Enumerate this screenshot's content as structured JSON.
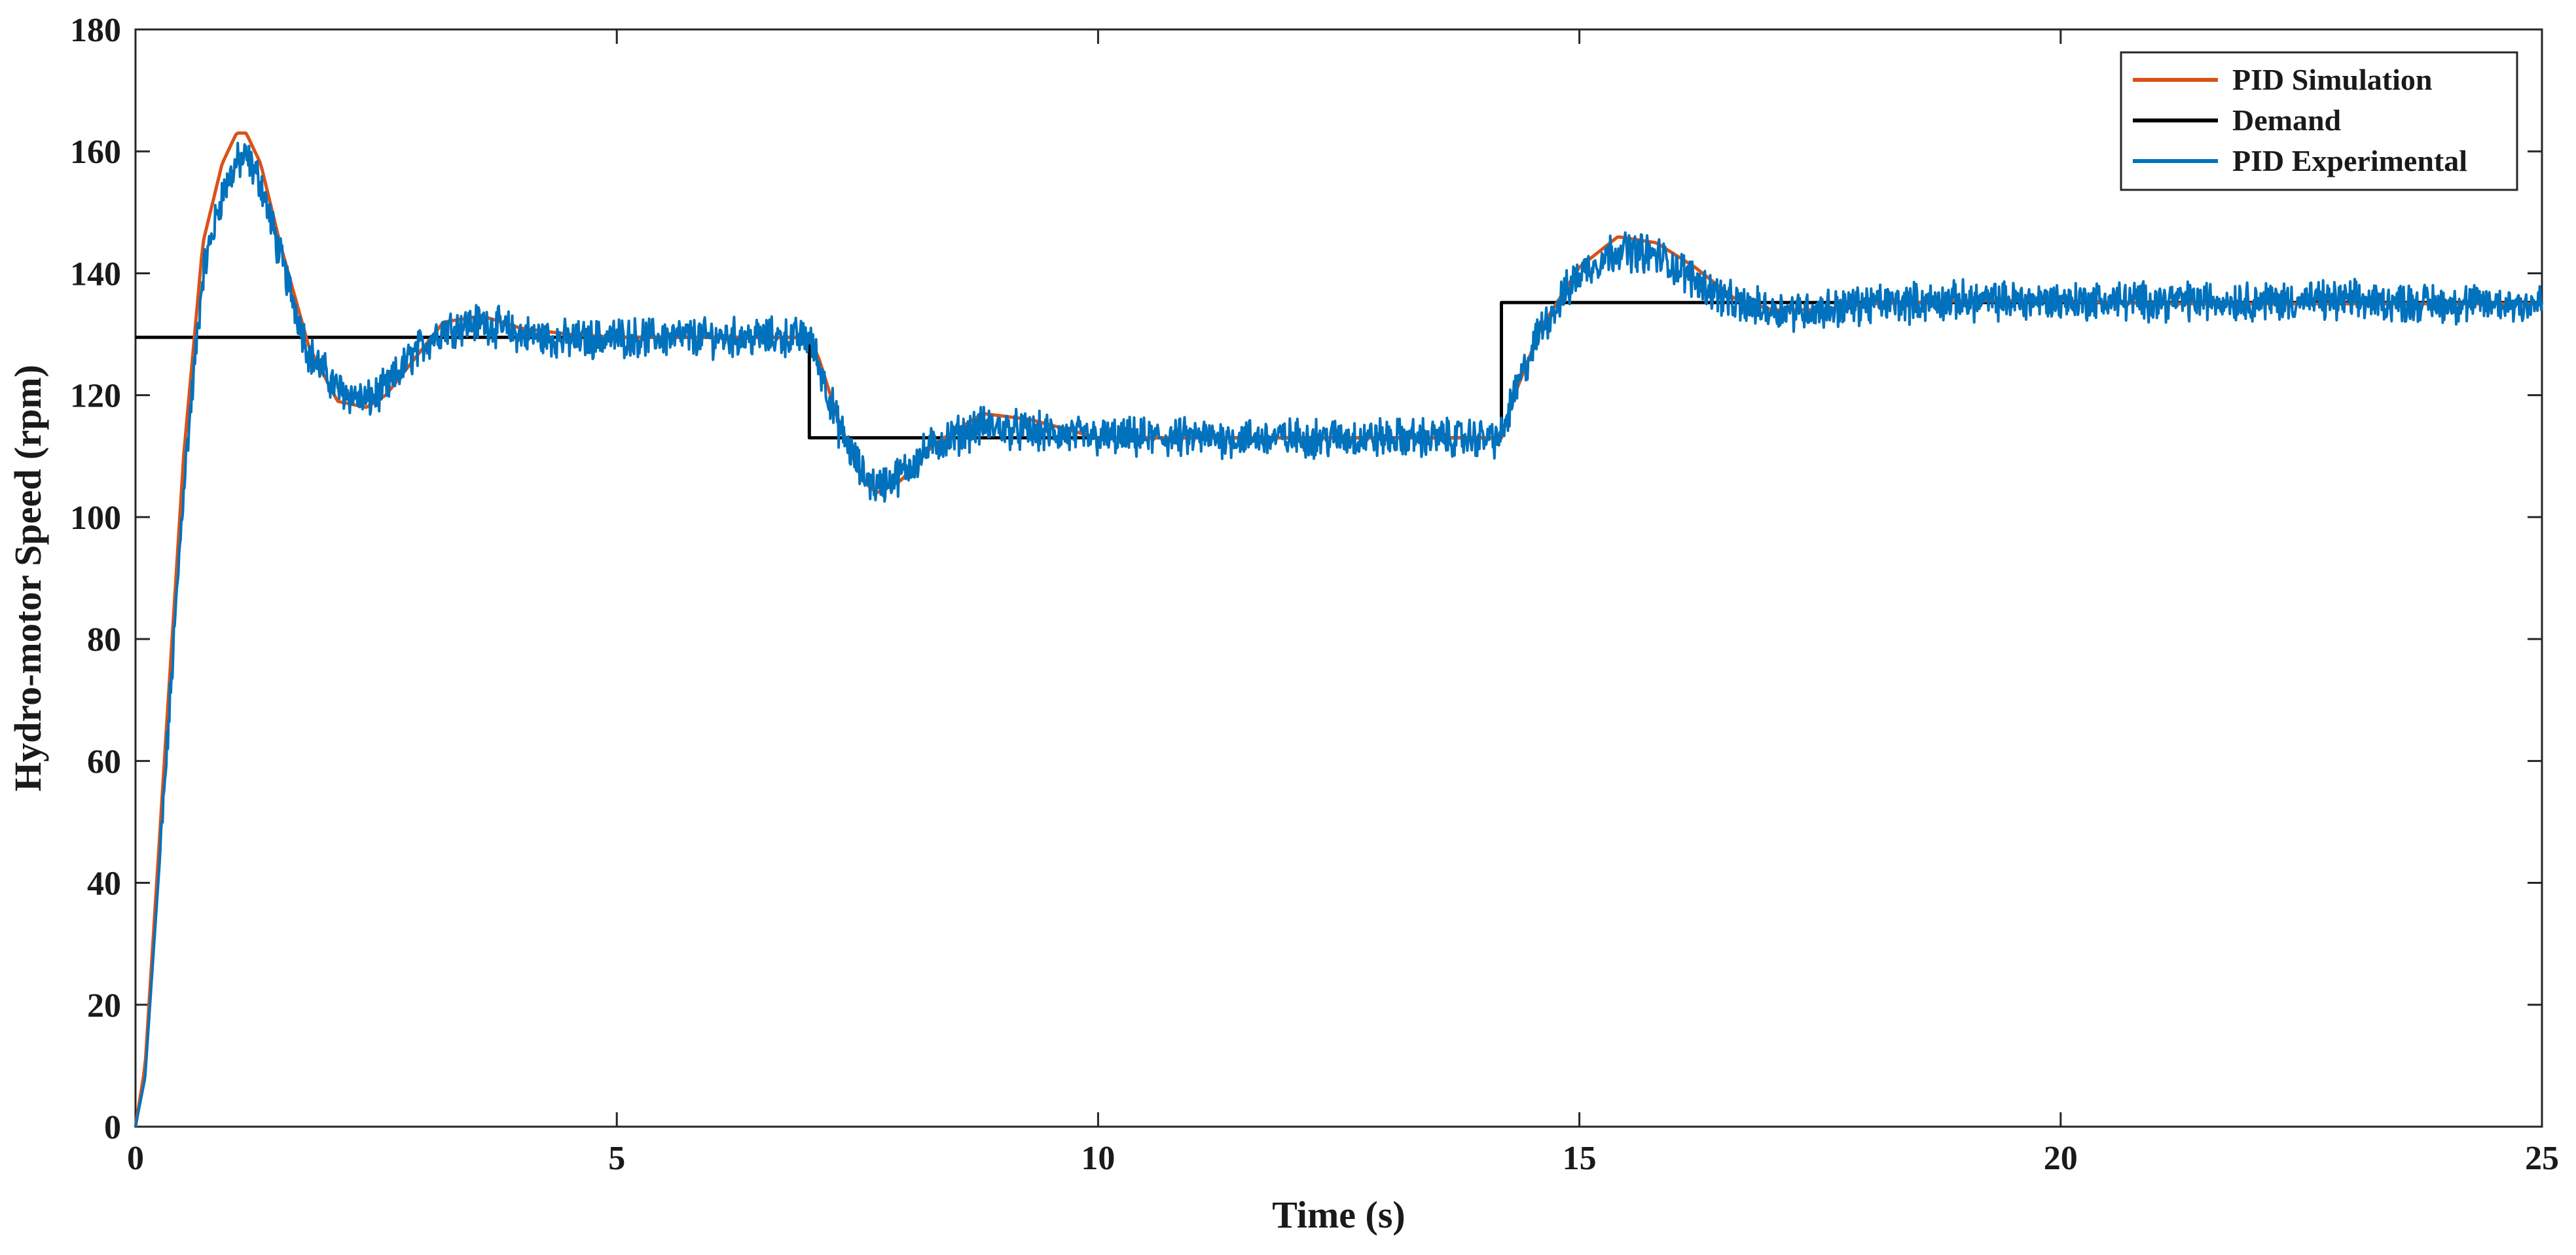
{
  "chart_data": {
    "type": "line",
    "title": "",
    "xlabel": "Time (s)",
    "ylabel": "Hydro-motor Speed (rpm)",
    "xlim": [
      0,
      25
    ],
    "ylim": [
      0,
      180
    ],
    "xticks": [
      0,
      5,
      10,
      15,
      20,
      25
    ],
    "yticks": [
      0,
      20,
      40,
      60,
      80,
      100,
      120,
      140,
      160,
      180
    ],
    "grid": false,
    "legend_position": "top-right",
    "series": [
      {
        "name": "PID Simulation",
        "color": "#d95319",
        "style": "smooth",
        "x": [
          0,
          0.1,
          0.3,
          0.5,
          0.7,
          0.9,
          1.05,
          1.15,
          1.3,
          1.5,
          1.8,
          2.1,
          2.4,
          2.6,
          2.9,
          3.2,
          3.6,
          4.0,
          4.5,
          5.0,
          6.0,
          7.0,
          7.1,
          7.3,
          7.55,
          7.7,
          7.95,
          8.3,
          8.8,
          9.3,
          10.0,
          11.0,
          12.0,
          13.0,
          14.19,
          14.3,
          14.6,
          15.0,
          15.4,
          15.8,
          16.2,
          16.6,
          17.0,
          17.5,
          18.0,
          19.0,
          20.0,
          21.0,
          22.0,
          23.0,
          24.0,
          25.0
        ],
        "values": [
          0,
          10,
          60,
          110,
          145,
          158,
          163,
          163,
          158,
          145,
          128,
          119,
          118,
          120,
          126,
          132,
          133,
          131,
          130,
          129.5,
          129.5,
          129.5,
          126,
          116,
          106,
          104,
          106,
          112,
          117,
          116,
          113,
          113,
          113,
          113,
          113,
          119,
          131,
          141,
          146,
          145,
          141,
          136,
          134,
          134,
          135,
          135.5,
          135.5,
          135,
          135,
          135,
          135,
          135
        ]
      },
      {
        "name": "Demand",
        "color": "#000000",
        "style": "step",
        "x": [
          0,
          7.0,
          7.0,
          14.19,
          14.19,
          25
        ],
        "values": [
          129.5,
          129.5,
          113,
          113,
          135.2,
          135.2
        ]
      },
      {
        "name": "PID Experimental",
        "color": "#0072bd",
        "style": "noisy",
        "noise_amplitude": 2.5,
        "x": [
          0,
          0.1,
          0.3,
          0.5,
          0.7,
          0.9,
          1.05,
          1.15,
          1.3,
          1.5,
          1.8,
          2.1,
          2.4,
          2.6,
          2.9,
          3.2,
          3.6,
          4.0,
          4.5,
          5.0,
          6.0,
          7.0,
          7.1,
          7.3,
          7.55,
          7.7,
          7.95,
          8.3,
          8.8,
          9.3,
          10.0,
          11.0,
          12.0,
          13.0,
          14.19,
          14.3,
          14.6,
          15.0,
          15.4,
          15.8,
          16.2,
          16.6,
          17.0,
          17.5,
          18.0,
          19.0,
          20.0,
          21.0,
          22.0,
          23.0,
          24.0,
          25.0
        ],
        "values": [
          0,
          8,
          55,
          105,
          140,
          153,
          158,
          159,
          155,
          143,
          127,
          121,
          119,
          121,
          127,
          131,
          132,
          130,
          129,
          129.5,
          129.5,
          129.5,
          125,
          115,
          107,
          105,
          107,
          112,
          115,
          114,
          113,
          113,
          113,
          113,
          113,
          119,
          131,
          140,
          144,
          143,
          139,
          135,
          134,
          134,
          135,
          135.5,
          135.5,
          135.5,
          135.5,
          135.5,
          135,
          135
        ]
      }
    ]
  }
}
